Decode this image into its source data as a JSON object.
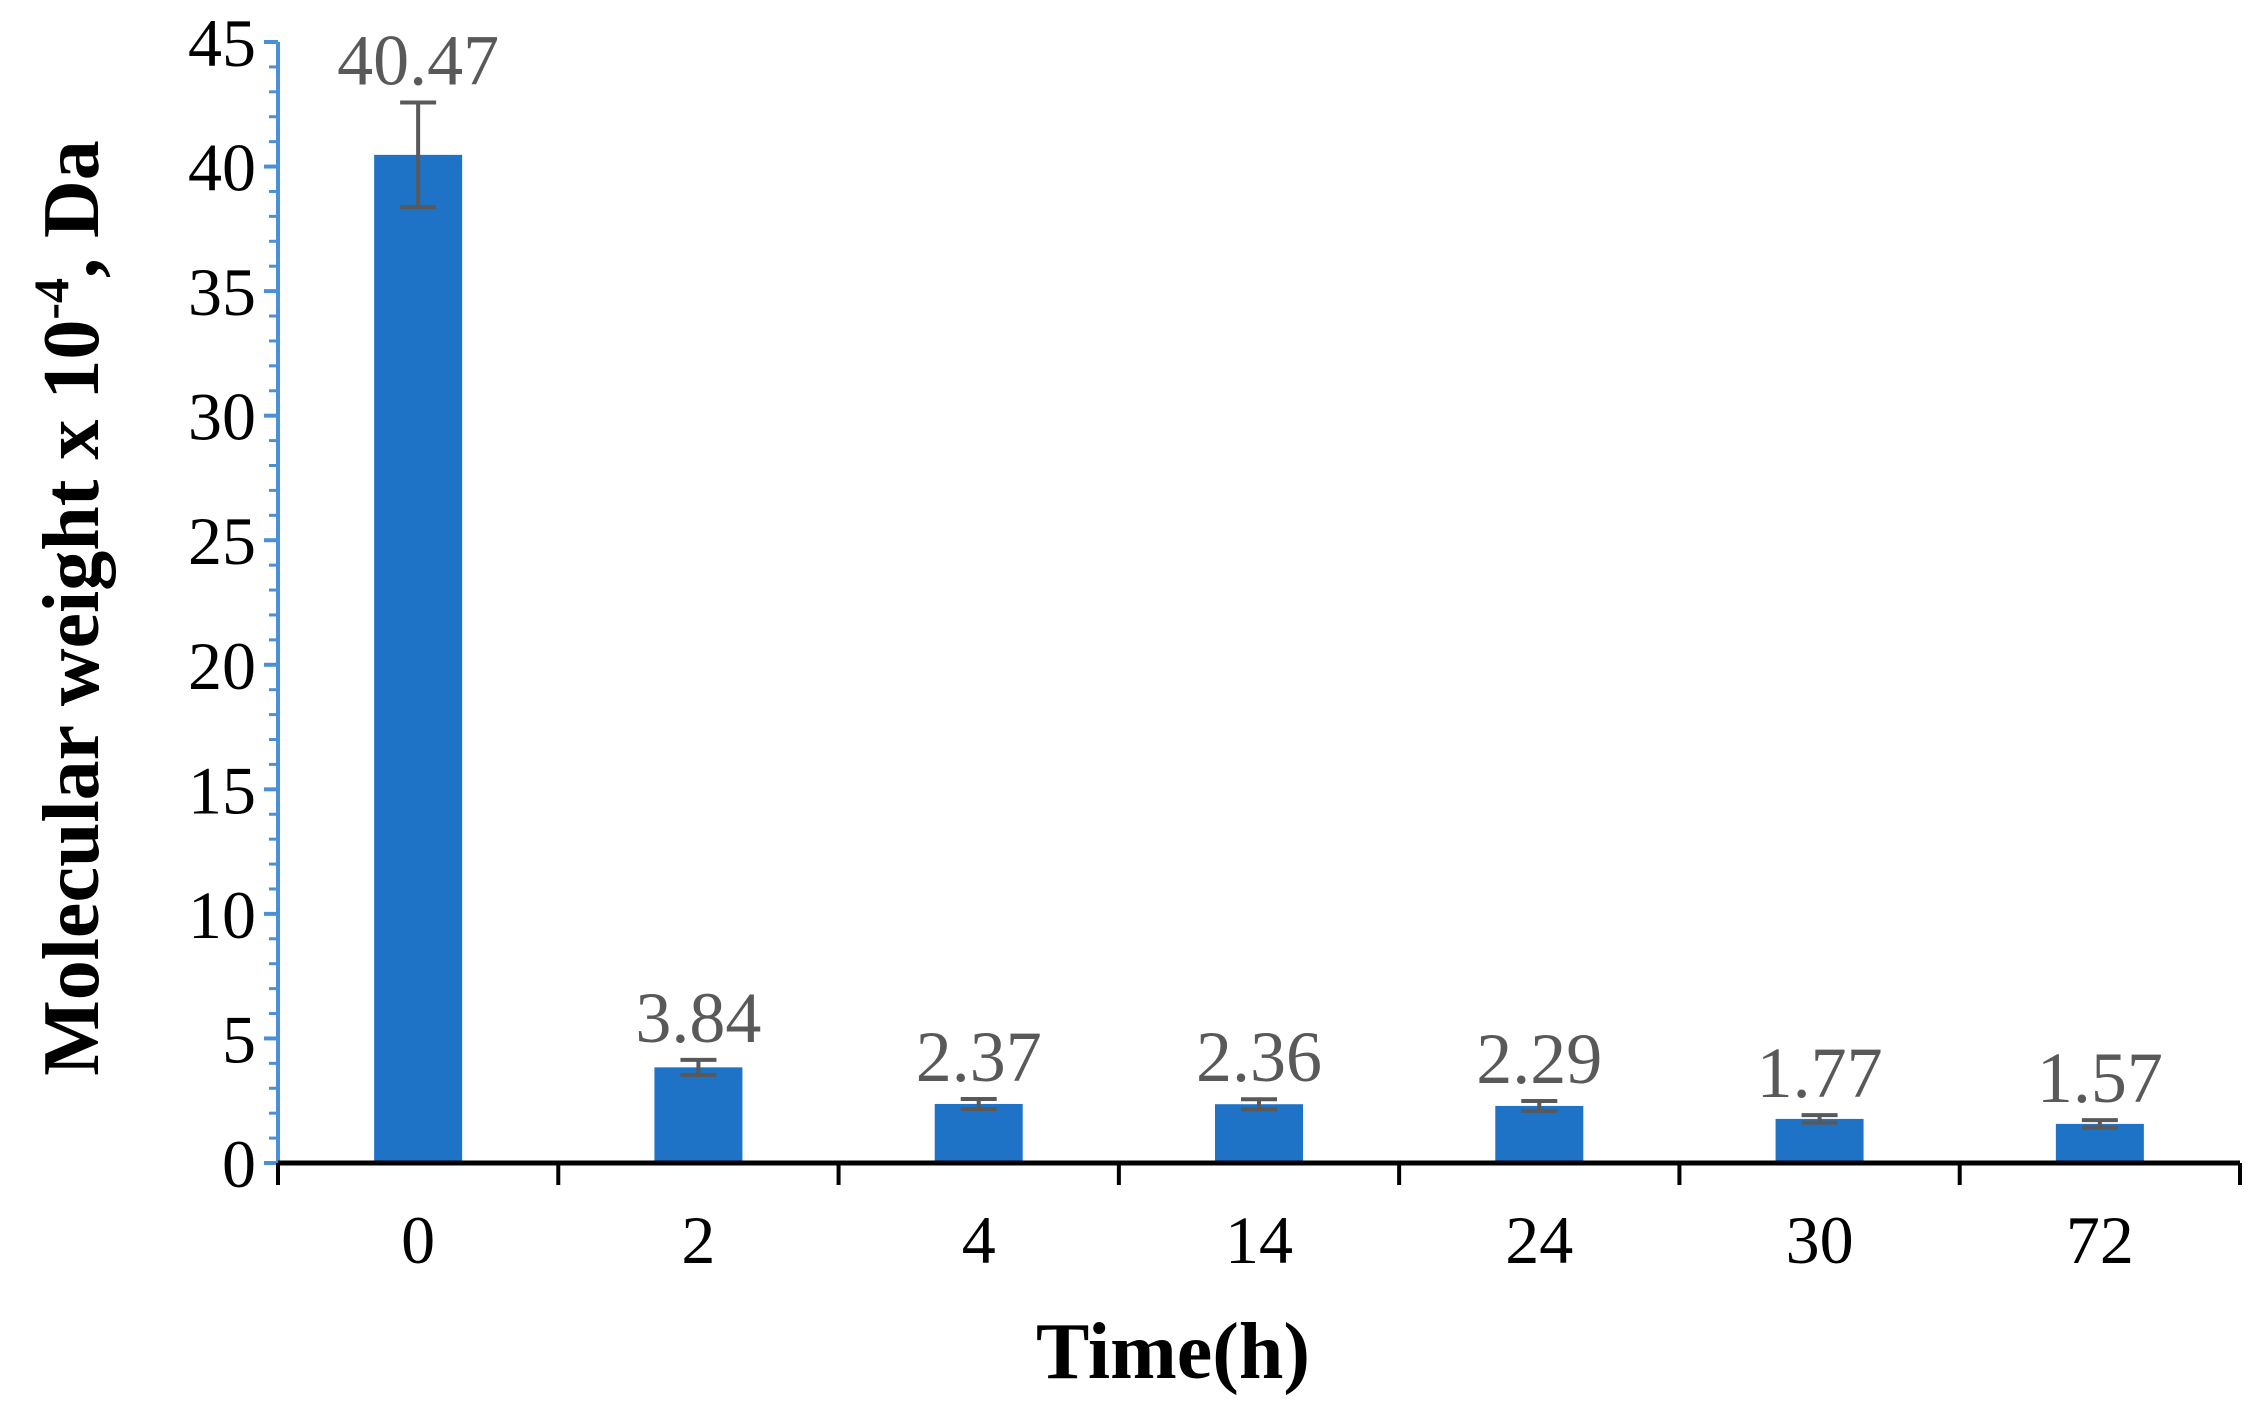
{
  "chart_data": {
    "type": "bar",
    "categories": [
      "0",
      "2",
      "4",
      "14",
      "24",
      "30",
      "72"
    ],
    "values": [
      40.47,
      3.84,
      2.37,
      2.36,
      2.29,
      1.77,
      1.57
    ],
    "error": [
      2.1,
      0.3,
      0.2,
      0.2,
      0.2,
      0.15,
      0.15
    ],
    "data_labels": [
      "40.47",
      "3.84",
      "2.37",
      "2.36",
      "2.29",
      "1.77",
      "1.57"
    ],
    "xlabel": "Time(h)",
    "ylabel": {
      "main": "Molecular weight x 10",
      "sup": "-4",
      "suffix": ", Da"
    },
    "ylim": [
      0,
      45
    ],
    "yticks": [
      0,
      5,
      10,
      15,
      20,
      25,
      30,
      35,
      40,
      45
    ],
    "grid": false,
    "legend": "none",
    "colors": {
      "bar": "#1f73c7",
      "error_bar": "#595959",
      "y_axis": "#4a90d9",
      "x_axis": "#000000",
      "data_label": "#595959"
    }
  }
}
